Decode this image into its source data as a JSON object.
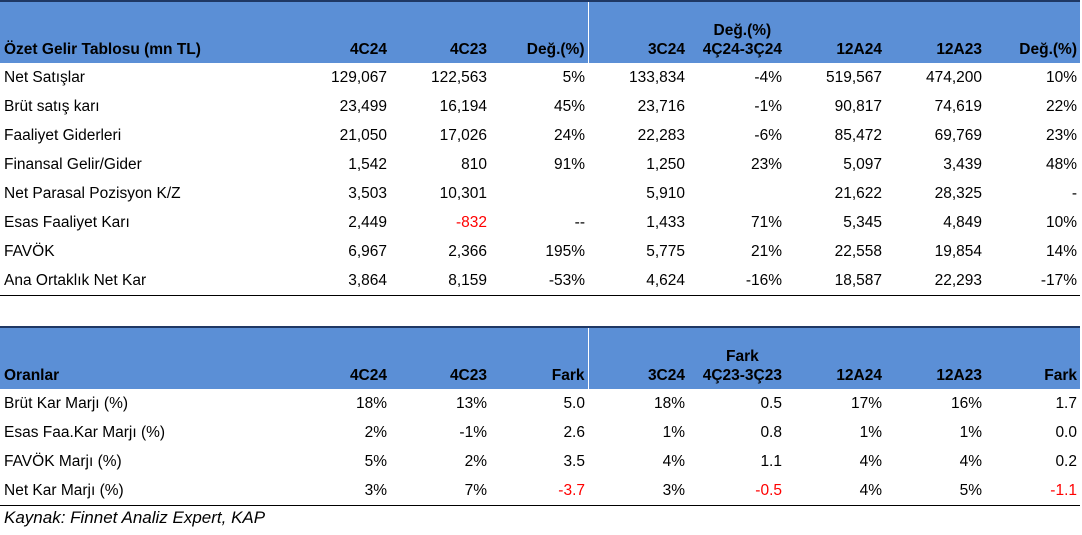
{
  "income": {
    "title": "Özet Gelir Tablosu (mn TL)",
    "headers": [
      "4C24",
      "4C23",
      "Değ.(%)",
      "3C24",
      [
        "Değ.(%)",
        "4Ç24-3Ç24"
      ],
      "12A24",
      "12A23",
      "Değ.(%)"
    ],
    "rows": [
      {
        "label": "Net Satışlar",
        "cells": [
          "129,067",
          "122,563",
          "5%",
          "133,834",
          "-4%",
          "519,567",
          "474,200",
          "10%"
        ]
      },
      {
        "label": "Brüt satış karı",
        "cells": [
          "23,499",
          "16,194",
          "45%",
          "23,716",
          "-1%",
          "90,817",
          "74,619",
          "22%"
        ]
      },
      {
        "label": "Faaliyet Giderleri",
        "cells": [
          "21,050",
          "17,026",
          "24%",
          "22,283",
          "-6%",
          "85,472",
          "69,769",
          "23%"
        ]
      },
      {
        "label": "Finansal Gelir/Gider",
        "cells": [
          "1,542",
          "810",
          "91%",
          "1,250",
          "23%",
          "5,097",
          "3,439",
          "48%"
        ]
      },
      {
        "label": "Net Parasal Pozisyon K/Z",
        "cells": [
          "3,503",
          "10,301",
          "",
          "5,910",
          "",
          "21,622",
          "28,325",
          "-"
        ]
      },
      {
        "label": "Esas Faaliyet Karı",
        "cells": [
          "2,449",
          "-832",
          "--",
          "1,433",
          "71%",
          "5,345",
          "4,849",
          "10%"
        ]
      },
      {
        "label": "FAVÖK",
        "cells": [
          "6,967",
          "2,366",
          "195%",
          "5,775",
          "21%",
          "22,558",
          "19,854",
          "14%"
        ]
      },
      {
        "label": "Ana Ortaklık Net Kar",
        "cells": [
          "3,864",
          "8,159",
          "-53%",
          "4,624",
          "-16%",
          "18,587",
          "22,293",
          "-17%"
        ]
      }
    ]
  },
  "ratios": {
    "title": "Oranlar",
    "headers": [
      "4C24",
      "4C23",
      "Fark",
      "3C24",
      [
        "Fark",
        "4Ç23-3Ç23"
      ],
      "12A24",
      "12A23",
      "Fark"
    ],
    "rows": [
      {
        "label": "Brüt Kar Marjı (%)",
        "cells": [
          "18%",
          "13%",
          "5.0",
          "18%",
          "0.5",
          "17%",
          "16%",
          "1.7"
        ]
      },
      {
        "label": "Esas Faa.Kar Marjı (%)",
        "cells": [
          "2%",
          "-1%",
          "2.6",
          "1%",
          "0.8",
          "1%",
          "1%",
          "0.0"
        ]
      },
      {
        "label": "FAVÖK Marjı (%)",
        "cells": [
          "5%",
          "2%",
          "3.5",
          "4%",
          "1.1",
          "4%",
          "4%",
          "0.2"
        ]
      },
      {
        "label": "Net Kar Marjı (%)",
        "cells": [
          "3%",
          "7%",
          "-3.7",
          "3%",
          "-0.5",
          "4%",
          "5%",
          "-1.1"
        ]
      }
    ]
  },
  "red_cells": {
    "income": [
      [
        5,
        1
      ]
    ],
    "ratios": [
      [
        3,
        2
      ],
      [
        3,
        4
      ],
      [
        3,
        7
      ]
    ]
  },
  "colors": {
    "header_bg": "#5b8fd6",
    "negative": "#ff0000",
    "rule": "#1f3864"
  },
  "source": "Kaynak: Finnet Analiz Expert, KAP"
}
